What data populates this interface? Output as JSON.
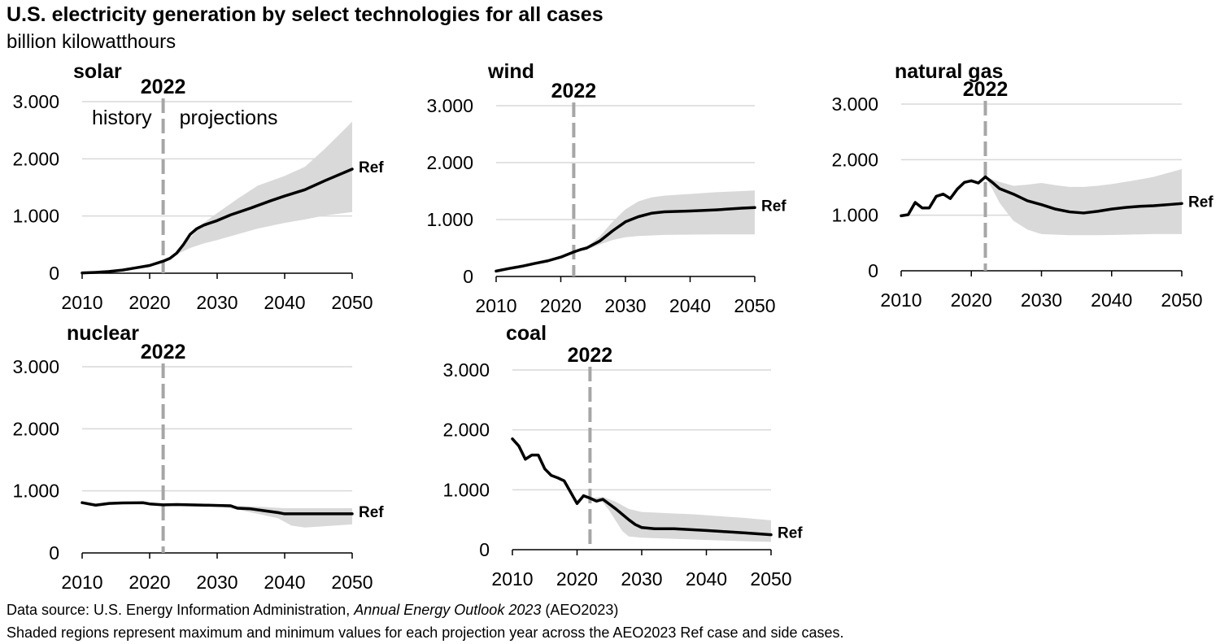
{
  "header": {
    "title": "U.S. electricity generation by select technologies for all cases",
    "subtitle": "billion kilowatthours"
  },
  "footer": {
    "source_prefix": "Data source: U.S. Energy Information Administration, ",
    "source_italic": "Annual Energy Outlook 2023",
    "source_suffix": " (AEO2023)",
    "note": "Shaded regions represent maximum and minimum values for each projection year across the AEO2023 Ref case and side cases."
  },
  "colors": {
    "line": "#000000",
    "band": "#d9d9d9",
    "grid": "#d9d9d9",
    "divider": "#a6a6a6",
    "axis": "#000000"
  },
  "chart_data": [
    {
      "type": "line",
      "title": "solar",
      "divider_label": "2022",
      "divider_x": 2022,
      "annotations": [
        "history",
        "projections"
      ],
      "series_label": "Ref",
      "xlim": [
        2010,
        2050
      ],
      "ylim": [
        0,
        3000
      ],
      "xticks": [
        2010,
        2020,
        2030,
        2040,
        2050
      ],
      "xtick_labels": [
        "2010",
        "2020",
        "2030",
        "2040",
        "2050"
      ],
      "yticks": [
        0,
        1000,
        2000,
        3000
      ],
      "ytick_labels": [
        "0",
        "1.000",
        "2.000",
        "3.000"
      ],
      "ref": [
        [
          2010,
          5
        ],
        [
          2012,
          15
        ],
        [
          2014,
          30
        ],
        [
          2016,
          55
        ],
        [
          2018,
          95
        ],
        [
          2020,
          135
        ],
        [
          2022,
          210
        ],
        [
          2023,
          260
        ],
        [
          2024,
          350
        ],
        [
          2025,
          500
        ],
        [
          2026,
          680
        ],
        [
          2027,
          780
        ],
        [
          2028,
          840
        ],
        [
          2030,
          920
        ],
        [
          2032,
          1020
        ],
        [
          2035,
          1140
        ],
        [
          2038,
          1270
        ],
        [
          2040,
          1350
        ],
        [
          2043,
          1460
        ],
        [
          2046,
          1620
        ],
        [
          2050,
          1820
        ]
      ],
      "band_upper": [
        [
          2022,
          210
        ],
        [
          2024,
          360
        ],
        [
          2026,
          620
        ],
        [
          2028,
          880
        ],
        [
          2030,
          1050
        ],
        [
          2033,
          1300
        ],
        [
          2036,
          1530
        ],
        [
          2040,
          1700
        ],
        [
          2043,
          1860
        ],
        [
          2046,
          2180
        ],
        [
          2050,
          2650
        ]
      ],
      "band_lower": [
        [
          2022,
          210
        ],
        [
          2024,
          330
        ],
        [
          2026,
          440
        ],
        [
          2028,
          520
        ],
        [
          2030,
          580
        ],
        [
          2033,
          680
        ],
        [
          2036,
          780
        ],
        [
          2040,
          880
        ],
        [
          2043,
          940
        ],
        [
          2046,
          1010
        ],
        [
          2050,
          1070
        ]
      ]
    },
    {
      "type": "line",
      "title": "wind",
      "divider_label": "2022",
      "divider_x": 2022,
      "series_label": "Ref",
      "xlim": [
        2010,
        2050
      ],
      "ylim": [
        0,
        3000
      ],
      "xticks": [
        2010,
        2020,
        2030,
        2040,
        2050
      ],
      "xtick_labels": [
        "2010",
        "2020",
        "2030",
        "2040",
        "2050"
      ],
      "yticks": [
        0,
        1000,
        2000,
        3000
      ],
      "ytick_labels": [
        "0",
        "1.000",
        "2.000",
        "3.000"
      ],
      "ref": [
        [
          2010,
          95
        ],
        [
          2012,
          140
        ],
        [
          2014,
          180
        ],
        [
          2016,
          230
        ],
        [
          2018,
          275
        ],
        [
          2020,
          340
        ],
        [
          2022,
          430
        ],
        [
          2023,
          470
        ],
        [
          2024,
          500
        ],
        [
          2026,
          620
        ],
        [
          2028,
          800
        ],
        [
          2030,
          960
        ],
        [
          2032,
          1050
        ],
        [
          2034,
          1110
        ],
        [
          2036,
          1135
        ],
        [
          2040,
          1150
        ],
        [
          2044,
          1170
        ],
        [
          2048,
          1200
        ],
        [
          2050,
          1210
        ]
      ],
      "band_upper": [
        [
          2022,
          430
        ],
        [
          2024,
          520
        ],
        [
          2026,
          700
        ],
        [
          2028,
          960
        ],
        [
          2030,
          1180
        ],
        [
          2032,
          1320
        ],
        [
          2034,
          1390
        ],
        [
          2036,
          1420
        ],
        [
          2040,
          1450
        ],
        [
          2044,
          1480
        ],
        [
          2048,
          1500
        ],
        [
          2050,
          1510
        ]
      ],
      "band_lower": [
        [
          2022,
          430
        ],
        [
          2024,
          470
        ],
        [
          2026,
          560
        ],
        [
          2028,
          640
        ],
        [
          2030,
          690
        ],
        [
          2032,
          710
        ],
        [
          2034,
          720
        ],
        [
          2036,
          730
        ],
        [
          2040,
          735
        ],
        [
          2044,
          740
        ],
        [
          2048,
          740
        ],
        [
          2050,
          740
        ]
      ]
    },
    {
      "type": "line",
      "title": "natural gas",
      "divider_label": "2022",
      "divider_x": 2022,
      "series_label": "Ref",
      "xlim": [
        2010,
        2050
      ],
      "ylim": [
        0,
        3000
      ],
      "xticks": [
        2010,
        2020,
        2030,
        2040,
        2050
      ],
      "xtick_labels": [
        "2010",
        "2020",
        "2030",
        "2040",
        "2050"
      ],
      "yticks": [
        0,
        1000,
        2000,
        3000
      ],
      "ytick_labels": [
        "0",
        "1.000",
        "2.000",
        "3.000"
      ],
      "ref": [
        [
          2010,
          990
        ],
        [
          2011,
          1010
        ],
        [
          2012,
          1230
        ],
        [
          2013,
          1130
        ],
        [
          2014,
          1130
        ],
        [
          2015,
          1340
        ],
        [
          2016,
          1380
        ],
        [
          2017,
          1300
        ],
        [
          2018,
          1470
        ],
        [
          2019,
          1590
        ],
        [
          2020,
          1620
        ],
        [
          2021,
          1580
        ],
        [
          2022,
          1690
        ],
        [
          2023,
          1590
        ],
        [
          2024,
          1480
        ],
        [
          2026,
          1380
        ],
        [
          2028,
          1260
        ],
        [
          2030,
          1190
        ],
        [
          2032,
          1110
        ],
        [
          2034,
          1060
        ],
        [
          2036,
          1040
        ],
        [
          2038,
          1070
        ],
        [
          2040,
          1110
        ],
        [
          2042,
          1140
        ],
        [
          2044,
          1160
        ],
        [
          2046,
          1170
        ],
        [
          2048,
          1190
        ],
        [
          2050,
          1210
        ]
      ],
      "band_upper": [
        [
          2022,
          1690
        ],
        [
          2024,
          1600
        ],
        [
          2026,
          1530
        ],
        [
          2028,
          1550
        ],
        [
          2030,
          1580
        ],
        [
          2032,
          1540
        ],
        [
          2034,
          1510
        ],
        [
          2036,
          1510
        ],
        [
          2038,
          1530
        ],
        [
          2040,
          1560
        ],
        [
          2043,
          1620
        ],
        [
          2046,
          1690
        ],
        [
          2050,
          1830
        ]
      ],
      "band_lower": [
        [
          2022,
          1690
        ],
        [
          2023,
          1470
        ],
        [
          2024,
          1230
        ],
        [
          2025,
          1060
        ],
        [
          2026,
          900
        ],
        [
          2028,
          740
        ],
        [
          2030,
          660
        ],
        [
          2034,
          640
        ],
        [
          2038,
          640
        ],
        [
          2042,
          650
        ],
        [
          2046,
          660
        ],
        [
          2050,
          660
        ]
      ]
    },
    {
      "type": "line",
      "title": "nuclear",
      "divider_label": "2022",
      "divider_x": 2022,
      "series_label": "Ref",
      "xlim": [
        2010,
        2050
      ],
      "ylim": [
        0,
        3000
      ],
      "xticks": [
        2010,
        2020,
        2030,
        2040,
        2050
      ],
      "xtick_labels": [
        "2010",
        "2020",
        "2030",
        "2040",
        "2050"
      ],
      "yticks": [
        0,
        1000,
        2000,
        3000
      ],
      "ytick_labels": [
        "0",
        "1.000",
        "2.000",
        "3.000"
      ],
      "ref": [
        [
          2010,
          810
        ],
        [
          2012,
          770
        ],
        [
          2014,
          797
        ],
        [
          2016,
          805
        ],
        [
          2018,
          807
        ],
        [
          2019,
          809
        ],
        [
          2020,
          790
        ],
        [
          2022,
          775
        ],
        [
          2024,
          780
        ],
        [
          2026,
          775
        ],
        [
          2028,
          770
        ],
        [
          2030,
          765
        ],
        [
          2032,
          760
        ],
        [
          2033,
          720
        ],
        [
          2035,
          710
        ],
        [
          2037,
          680
        ],
        [
          2039,
          650
        ],
        [
          2040,
          630
        ],
        [
          2042,
          630
        ],
        [
          2045,
          630
        ],
        [
          2050,
          630
        ]
      ],
      "band_upper": [
        [
          2022,
          775
        ],
        [
          2026,
          780
        ],
        [
          2030,
          772
        ],
        [
          2033,
          760
        ],
        [
          2036,
          745
        ],
        [
          2040,
          720
        ],
        [
          2044,
          720
        ],
        [
          2050,
          720
        ]
      ],
      "band_lower": [
        [
          2022,
          775
        ],
        [
          2026,
          770
        ],
        [
          2030,
          755
        ],
        [
          2033,
          700
        ],
        [
          2036,
          630
        ],
        [
          2039,
          560
        ],
        [
          2041,
          440
        ],
        [
          2043,
          410
        ],
        [
          2046,
          430
        ],
        [
          2050,
          460
        ]
      ]
    },
    {
      "type": "line",
      "title": "coal",
      "divider_label": "2022",
      "divider_x": 2022,
      "series_label": "Ref",
      "xlim": [
        2010,
        2050
      ],
      "ylim": [
        0,
        3000
      ],
      "xticks": [
        2010,
        2020,
        2030,
        2040,
        2050
      ],
      "xtick_labels": [
        "2010",
        "2020",
        "2030",
        "2040",
        "2050"
      ],
      "yticks": [
        0,
        1000,
        2000,
        3000
      ],
      "ytick_labels": [
        "0",
        "1.000",
        "2.000",
        "3.000"
      ],
      "ref": [
        [
          2010,
          1850
        ],
        [
          2011,
          1730
        ],
        [
          2012,
          1510
        ],
        [
          2013,
          1580
        ],
        [
          2014,
          1580
        ],
        [
          2015,
          1350
        ],
        [
          2016,
          1240
        ],
        [
          2017,
          1200
        ],
        [
          2018,
          1150
        ],
        [
          2019,
          960
        ],
        [
          2020,
          770
        ],
        [
          2021,
          900
        ],
        [
          2022,
          860
        ],
        [
          2023,
          810
        ],
        [
          2024,
          840
        ],
        [
          2025,
          760
        ],
        [
          2026,
          680
        ],
        [
          2028,
          500
        ],
        [
          2029,
          420
        ],
        [
          2030,
          370
        ],
        [
          2032,
          350
        ],
        [
          2035,
          350
        ],
        [
          2040,
          320
        ],
        [
          2043,
          300
        ],
        [
          2046,
          280
        ],
        [
          2050,
          250
        ]
      ],
      "band_upper": [
        [
          2022,
          860
        ],
        [
          2024,
          880
        ],
        [
          2026,
          800
        ],
        [
          2028,
          680
        ],
        [
          2030,
          630
        ],
        [
          2034,
          610
        ],
        [
          2038,
          590
        ],
        [
          2042,
          560
        ],
        [
          2046,
          530
        ],
        [
          2050,
          490
        ]
      ],
      "band_lower": [
        [
          2022,
          860
        ],
        [
          2024,
          790
        ],
        [
          2025,
          650
        ],
        [
          2026,
          480
        ],
        [
          2027,
          310
        ],
        [
          2028,
          220
        ],
        [
          2030,
          200
        ],
        [
          2034,
          185
        ],
        [
          2038,
          170
        ],
        [
          2042,
          155
        ],
        [
          2046,
          140
        ],
        [
          2050,
          130
        ]
      ]
    }
  ]
}
